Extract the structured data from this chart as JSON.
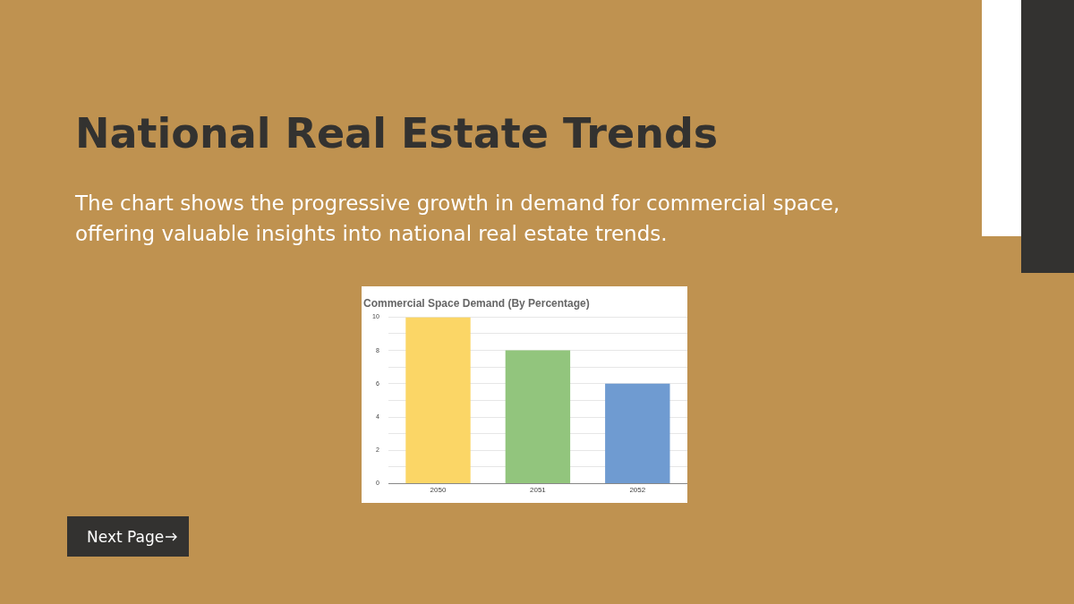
{
  "chart_data": {
    "type": "bar",
    "title": "Commercial Space Demand (By Percentage)",
    "categories": [
      "2050",
      "2051",
      "2052"
    ],
    "values": [
      10,
      8,
      6
    ],
    "colors": [
      "#fbd666",
      "#92c57d",
      "#6f9bd1"
    ],
    "ylim": [
      0,
      10
    ],
    "yticks": [
      0,
      {
        "value": 1,
        "label": null
      },
      2,
      {
        "value": 3,
        "label": null
      },
      4,
      {
        "value": 5,
        "label": null
      },
      6,
      {
        "value": 7,
        "label": null
      },
      8,
      {
        "value": 9,
        "label": null
      },
      10
    ],
    "grid": "y",
    "annotations": [
      "National Real Estate Trends",
      "The chart shows the progressive growth in demand for commercial space, offering valuable insights into national real estate trends.",
      "Next Page"
    ]
  }
}
